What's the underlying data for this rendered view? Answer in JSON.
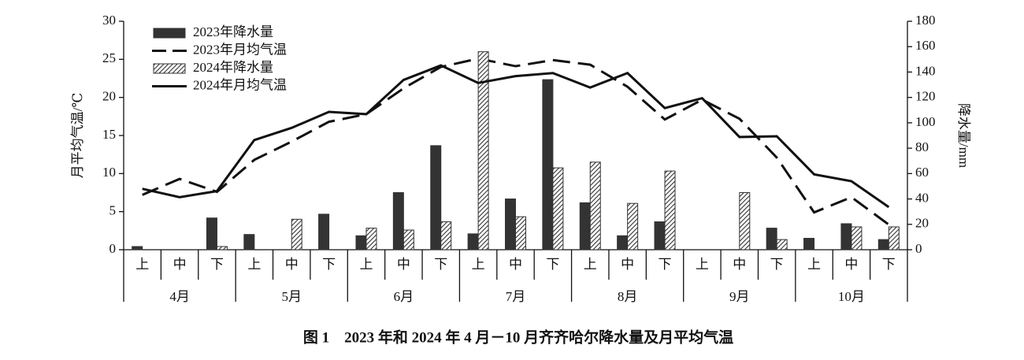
{
  "chart_data": {
    "type": "combo",
    "title": "图 1　2023 年和 2024 年 4 月－10 月齐齐哈尔降水量及月平均气温",
    "y_label": "月平均气温/℃",
    "y2_label": "降水量/mm",
    "categories": [
      "上",
      "中",
      "下",
      "上",
      "中",
      "下",
      "上",
      "中",
      "下",
      "上",
      "中",
      "下",
      "上",
      "中",
      "下",
      "上",
      "中",
      "下",
      "上",
      "中",
      "下"
    ],
    "groups": [
      "4月",
      "5月",
      "6月",
      "7月",
      "8月",
      "9月",
      "10月"
    ],
    "ylim": [
      0,
      30
    ],
    "yticks": [
      0,
      5,
      10,
      15,
      20,
      25,
      30
    ],
    "y2lim": [
      0,
      180
    ],
    "y2ticks": [
      0,
      20,
      40,
      60,
      80,
      100,
      120,
      140,
      160,
      180
    ],
    "legend": "upper left",
    "series": [
      {
        "name": "2023年降水量",
        "type": "bar",
        "axis": "y2",
        "color": "#333333",
        "fill": "solid",
        "values": [
          2.5,
          0,
          25,
          12,
          0,
          28,
          11,
          45,
          82,
          12.5,
          40,
          134,
          37,
          11,
          22,
          0,
          0,
          17,
          9,
          20.5,
          8
        ]
      },
      {
        "name": "2023年月均气温",
        "type": "line",
        "color": "#111111",
        "style": "dashed",
        "values": [
          7.2,
          9.3,
          7.6,
          11.8,
          14.2,
          16.8,
          17.8,
          21.2,
          24,
          25.1,
          24.1,
          24.9,
          24.3,
          21.4,
          17.1,
          19.7,
          17.2,
          12.1,
          4.9,
          6.9,
          3.3
        ]
      },
      {
        "name": "2024年降水量",
        "type": "bar",
        "axis": "y2",
        "color": "#333333",
        "fill": "hatch",
        "values": [
          0,
          0,
          2.5,
          0,
          24,
          0,
          17,
          15.5,
          22,
          156,
          26,
          64.5,
          69,
          36.5,
          62,
          0,
          45,
          8,
          0,
          18,
          18
        ]
      },
      {
        "name": "2024年月均气温",
        "type": "line",
        "color": "#111111",
        "style": "solid",
        "values": [
          8,
          6.9,
          7.7,
          14.4,
          16,
          18.1,
          17.8,
          22.3,
          24.2,
          21.9,
          22.8,
          23.2,
          21.3,
          23.2,
          18.6,
          19.9,
          14.8,
          14.9,
          9.9,
          9,
          5.6
        ]
      }
    ]
  }
}
